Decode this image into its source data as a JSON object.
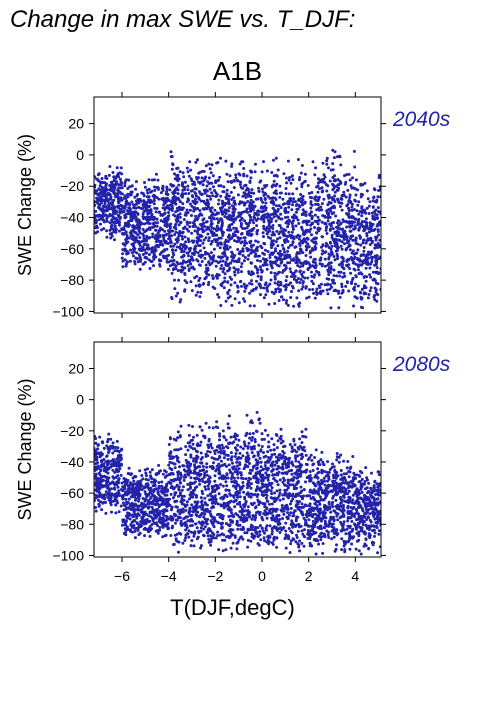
{
  "page": {
    "title": "Change in max SWE vs. T_DJF:"
  },
  "chart_data": [
    {
      "type": "scatter",
      "title": "A1B",
      "panel_label": "2040s",
      "xlabel": "",
      "ylabel": "SWE Change (%)",
      "xlim": [
        -7.2,
        5.1
      ],
      "ylim": [
        -101,
        37
      ],
      "xticks": [
        -6,
        -4,
        -2,
        0,
        2,
        4
      ],
      "xtick_labels": [],
      "yticks": [
        20,
        0,
        -20,
        -40,
        -60,
        -80,
        -100
      ],
      "ytick_labels": [
        "20",
        "0",
        "−20",
        "−40",
        "−60",
        "−80",
        "−100"
      ],
      "grid": false,
      "marker_color": "#2222aa",
      "point_density": [
        {
          "x_range": [
            -7.2,
            -6.0
          ],
          "y_range": [
            -55,
            -5
          ]
        },
        {
          "x_range": [
            -6.0,
            -4.0
          ],
          "y_range": [
            -75,
            -10
          ]
        },
        {
          "x_range": [
            -4.0,
            -2.0
          ],
          "y_range": [
            -95,
            5
          ]
        },
        {
          "x_range": [
            -2.0,
            0.0
          ],
          "y_range": [
            -100,
            3
          ]
        },
        {
          "x_range": [
            0.0,
            2.0
          ],
          "y_range": [
            -100,
            2
          ]
        },
        {
          "x_range": [
            2.0,
            4.0
          ],
          "y_range": [
            -100,
            5
          ]
        },
        {
          "x_range": [
            4.0,
            5.1
          ],
          "y_range": [
            -100,
            -10
          ]
        }
      ]
    },
    {
      "type": "scatter",
      "title": "",
      "panel_label": "2080s",
      "xlabel": "T(DJF,degC)",
      "ylabel": "SWE Change (%)",
      "xlim": [
        -7.2,
        5.1
      ],
      "ylim": [
        -101,
        37
      ],
      "xticks": [
        -6,
        -4,
        -2,
        0,
        2,
        4
      ],
      "xtick_labels": [
        "−6",
        "−4",
        "−2",
        "0",
        "2",
        "4"
      ],
      "yticks": [
        20,
        0,
        -20,
        -40,
        -60,
        -80,
        -100
      ],
      "ytick_labels": [
        "20",
        "0",
        "−20",
        "−40",
        "−60",
        "−80",
        "−100"
      ],
      "grid": false,
      "marker_color": "#2222aa",
      "point_density": [
        {
          "x_range": [
            -7.2,
            -6.0
          ],
          "y_range": [
            -75,
            -20
          ]
        },
        {
          "x_range": [
            -6.0,
            -4.0
          ],
          "y_range": [
            -90,
            -40
          ]
        },
        {
          "x_range": [
            -4.0,
            -2.0
          ],
          "y_range": [
            -100,
            -10
          ]
        },
        {
          "x_range": [
            -2.0,
            0.0
          ],
          "y_range": [
            -100,
            -5
          ]
        },
        {
          "x_range": [
            0.0,
            2.0
          ],
          "y_range": [
            -100,
            -15
          ]
        },
        {
          "x_range": [
            2.0,
            4.0
          ],
          "y_range": [
            -100,
            -30
          ]
        },
        {
          "x_range": [
            4.0,
            5.1
          ],
          "y_range": [
            -100,
            -40
          ]
        }
      ]
    }
  ]
}
